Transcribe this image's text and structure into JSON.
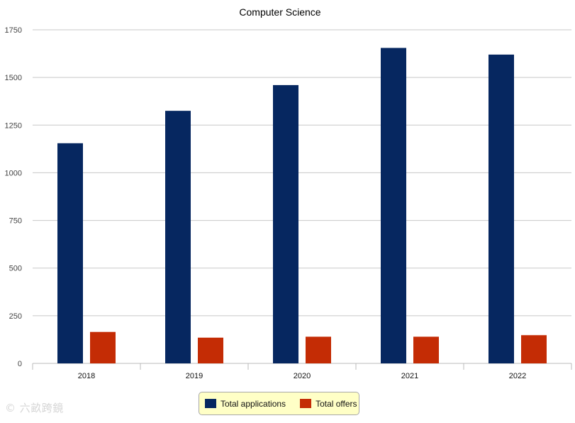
{
  "chart_data": {
    "type": "bar",
    "title": "Computer Science",
    "xlabel": "",
    "ylabel": "",
    "categories": [
      "2018",
      "2019",
      "2020",
      "2021",
      "2022"
    ],
    "series": [
      {
        "name": "Total applications",
        "values": [
          1155,
          1325,
          1460,
          1655,
          1620
        ],
        "color": "#062760"
      },
      {
        "name": "Total offers",
        "values": [
          165,
          135,
          140,
          140,
          148
        ],
        "color": "#c42c05"
      }
    ],
    "ylim": [
      0,
      1750
    ],
    "yticks": [
      "0",
      "250",
      "500",
      "750",
      "1000",
      "1250",
      "1500",
      "1750"
    ],
    "grid": true,
    "legend_position": "bottom"
  },
  "watermark": {
    "text": "©  六畝跨鏡"
  }
}
